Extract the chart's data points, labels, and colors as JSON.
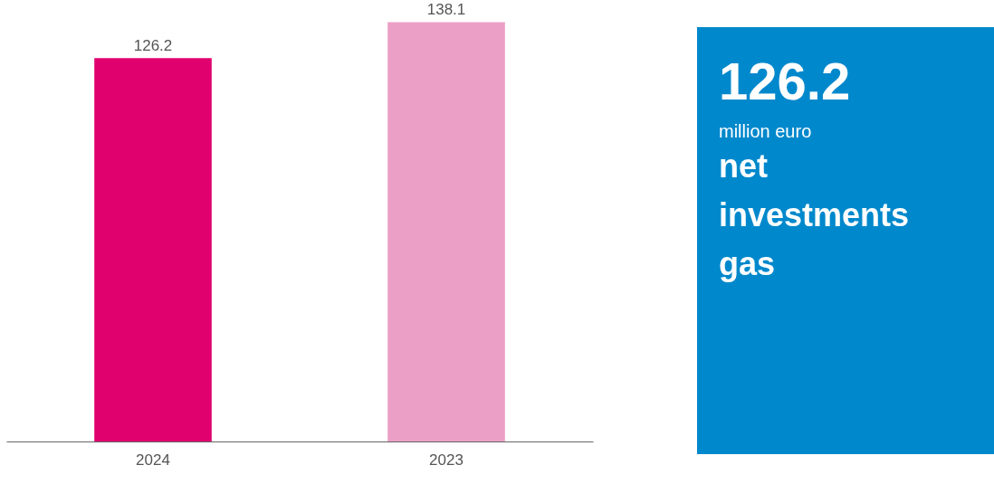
{
  "chart_data": [
    {
      "type": "bar",
      "categories": [
        "2024",
        "2023"
      ],
      "values": [
        126.2,
        138.1
      ],
      "colors": [
        "#e0006e",
        "#eb9fc6"
      ],
      "data_labels": true,
      "tick_labels": "x"
    },
    {
      "type": "other",
      "annotations": [
        "126.2",
        "million euro",
        "net investments gas"
      ]
    }
  ]
}
